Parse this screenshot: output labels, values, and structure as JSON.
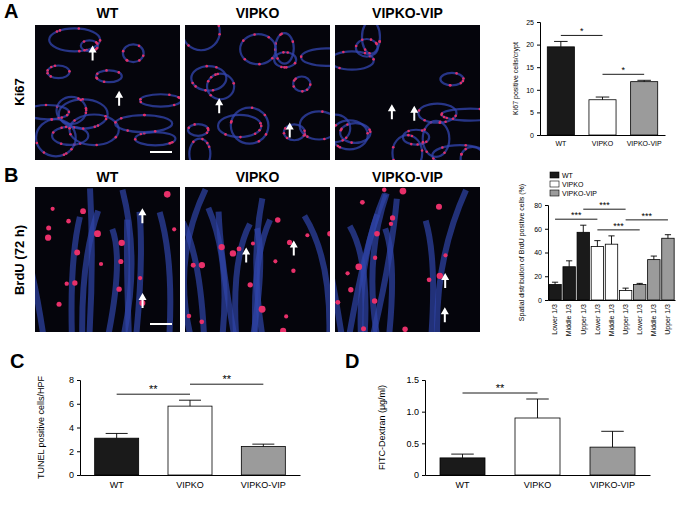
{
  "figure": {
    "panels": [
      {
        "letter": "A",
        "row_label": "Ki67",
        "images": [
          "WT",
          "VIPKO",
          "VIPKO-VIP"
        ]
      },
      {
        "letter": "B",
        "row_label": "BrdU (72 h)",
        "images": [
          "WT",
          "VIPKO",
          "VIPKO-VIP"
        ]
      },
      {
        "letter": "C"
      },
      {
        "letter": "D"
      }
    ]
  },
  "chart_data": [
    {
      "type": "bar",
      "y_label": "Ki67 positive cells/crypt",
      "categories": [
        "WT",
        "VIPKO",
        "VIPKO-VIP"
      ],
      "values": [
        19.5,
        7.8,
        11.8
      ],
      "errors": [
        1.2,
        0.6,
        0.3
      ],
      "colors": [
        "#1a1a1a",
        "#ffffff",
        "#9b9b9b"
      ],
      "ylim": [
        0,
        25
      ],
      "yticks": [
        0,
        5,
        10,
        15,
        20,
        25
      ],
      "annotations": [
        {
          "text": "*",
          "between": [
            0,
            1
          ]
        },
        {
          "text": "*",
          "between": [
            1,
            2
          ]
        }
      ]
    },
    {
      "type": "bar",
      "y_label": "Spatial distribution of BrdU positive cells (%)",
      "categories": [
        "Lower 1/3",
        "Middle 1/3",
        "Upper 1/3",
        "Lower 1/3",
        "Middle 1/3",
        "Upper 1/3",
        "Lower 1/3",
        "Middle 1/3",
        "Upper 1/3"
      ],
      "series": [
        {
          "name": "WT",
          "color": "#1a1a1a",
          "values": [
            13,
            28,
            57,
            null,
            null,
            null,
            null,
            null,
            null
          ],
          "errors": [
            2,
            5,
            6,
            null,
            null,
            null,
            null,
            null,
            null
          ]
        },
        {
          "name": "VIPKO",
          "color": "#ffffff",
          "values": [
            null,
            null,
            null,
            45,
            47,
            8,
            null,
            null,
            null
          ],
          "errors": [
            null,
            null,
            null,
            5,
            7,
            2,
            null,
            null,
            null
          ]
        },
        {
          "name": "VIPKO-VIP",
          "color": "#9b9b9b",
          "values": [
            null,
            null,
            null,
            null,
            null,
            null,
            13,
            34,
            52
          ],
          "errors": [
            null,
            null,
            null,
            null,
            null,
            null,
            1,
            3,
            3
          ]
        }
      ],
      "legend": "top-left",
      "ylim": [
        0,
        80
      ],
      "yticks": [
        0,
        20,
        40,
        60,
        80
      ],
      "annotations": [
        {
          "text": "***",
          "between": [
            0,
            3
          ]
        },
        {
          "text": "***",
          "between": [
            2,
            5
          ]
        },
        {
          "text": "***",
          "between": [
            3,
            6
          ]
        },
        {
          "text": "***",
          "between": [
            5,
            8
          ]
        }
      ]
    },
    {
      "type": "bar",
      "y_label": "TUNEL positive cells/HPF",
      "categories": [
        "WT",
        "VIPKO",
        "VIPKO-VIP"
      ],
      "values": [
        3.1,
        5.8,
        2.4
      ],
      "errors": [
        0.4,
        0.5,
        0.2
      ],
      "colors": [
        "#1a1a1a",
        "#ffffff",
        "#9b9b9b"
      ],
      "ylim": [
        0,
        8
      ],
      "yticks": [
        0,
        2,
        4,
        6,
        8
      ],
      "annotations": [
        {
          "text": "**",
          "between": [
            0,
            1
          ]
        },
        {
          "text": "**",
          "between": [
            1,
            2
          ]
        }
      ]
    },
    {
      "type": "bar",
      "y_label": "FITC-Dextran (μg/ml)",
      "categories": [
        "WT",
        "VIPKO",
        "VIPKO-VIP"
      ],
      "values": [
        0.27,
        0.9,
        0.44
      ],
      "errors": [
        0.06,
        0.3,
        0.25
      ],
      "colors": [
        "#1a1a1a",
        "#ffffff",
        "#9b9b9b"
      ],
      "ylim": [
        0,
        1.5
      ],
      "yticks": [
        0,
        0.5,
        {
          "value": 1,
          "label": "1.0"
        },
        1.5
      ],
      "annotations": [
        {
          "text": "**",
          "between": [
            0,
            1
          ]
        }
      ]
    }
  ]
}
